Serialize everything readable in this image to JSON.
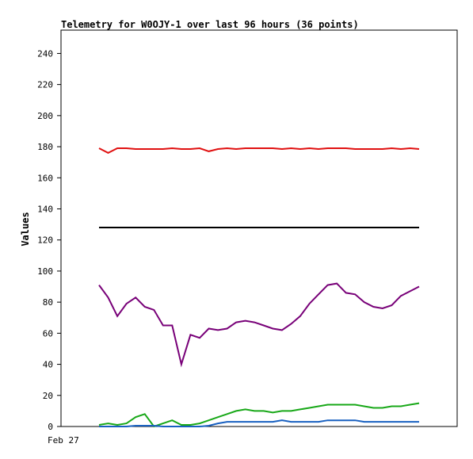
{
  "chart_data": {
    "type": "line",
    "title": "Telemetry for W0OJY-1 over last 96 hours (36 points)",
    "xlabel": "",
    "ylabel": "Values",
    "ylim": [
      0,
      255
    ],
    "yticks": [
      0,
      20,
      40,
      60,
      80,
      100,
      120,
      140,
      160,
      180,
      200,
      220,
      240
    ],
    "x_tick_labels": [
      "Feb 27"
    ],
    "grid": false,
    "legend": "none",
    "series": [
      {
        "color": "#e01010",
        "values": [
          179,
          176,
          179,
          179,
          178.5,
          178.5,
          178.5,
          178.5,
          179,
          178.5,
          178.5,
          179,
          177,
          178.5,
          179,
          178.5,
          179,
          179,
          179,
          179,
          178.5,
          179,
          178.5,
          179,
          178.5,
          179,
          179,
          179,
          178.5,
          178.5,
          178.5,
          178.5,
          179,
          178.5,
          179,
          178.5
        ]
      },
      {
        "color": "#000000",
        "values": [
          128,
          128,
          128,
          128,
          128,
          128,
          128,
          128,
          128,
          128,
          128,
          128,
          128,
          128,
          128,
          128,
          128,
          128,
          128,
          128,
          128,
          128,
          128,
          128,
          128,
          128,
          128,
          128,
          128,
          128,
          128,
          128,
          128,
          128,
          128,
          128
        ]
      },
      {
        "color": "#780078",
        "values": [
          91,
          83,
          71,
          79,
          83,
          77,
          75,
          65,
          65,
          40,
          59,
          57,
          63,
          62,
          63,
          67,
          68,
          67,
          65,
          63,
          62,
          66,
          71,
          79,
          85,
          91,
          92,
          86,
          85,
          80,
          77,
          76,
          78,
          84,
          87,
          90
        ]
      },
      {
        "color": "#18a818",
        "values": [
          1,
          2,
          1,
          2,
          6,
          8,
          0,
          2,
          4,
          1,
          1,
          2,
          4,
          6,
          8,
          10,
          11,
          10,
          10,
          9,
          10,
          10,
          11,
          12,
          13,
          14,
          14,
          14,
          14,
          13,
          12,
          12,
          13,
          13,
          14,
          15
        ]
      },
      {
        "color": "#1860c0",
        "values": [
          0,
          0,
          0,
          0,
          0.5,
          0.5,
          0.5,
          0,
          0,
          0,
          0,
          0,
          0.5,
          2,
          3,
          3,
          3,
          3,
          3,
          3,
          4,
          3,
          3,
          3,
          3,
          4,
          4,
          4,
          4,
          3,
          3,
          3,
          3,
          3,
          3,
          3
        ]
      }
    ]
  }
}
